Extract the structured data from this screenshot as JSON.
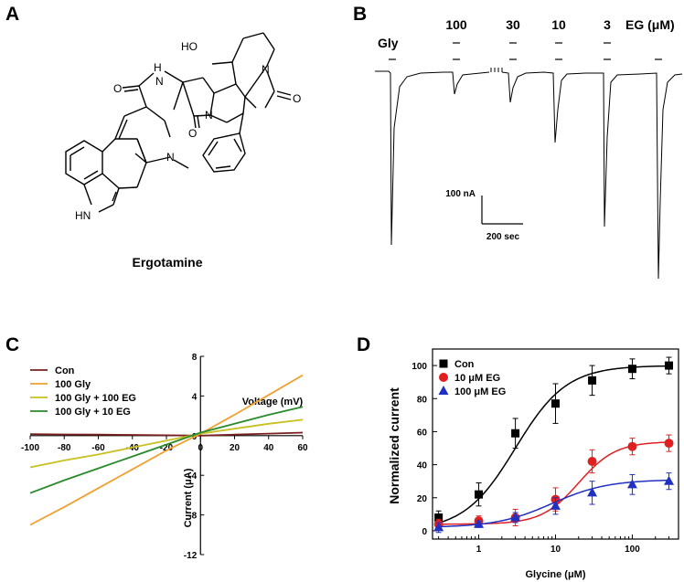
{
  "panels": {
    "a": {
      "letter": "A",
      "compound_name": "Ergotamine",
      "atoms": {
        "ho": "HO",
        "h": "H",
        "n": "N",
        "o": "O",
        "hn": "HN"
      }
    },
    "b": {
      "letter": "B",
      "concentrations": [
        "100",
        "30",
        "10",
        "3"
      ],
      "eg_label": "EG (μM)",
      "gly_label": "Gly",
      "scale_current": "100 nA",
      "scale_time": "200 sec"
    },
    "c": {
      "letter": "C"
    },
    "d": {
      "letter": "D"
    }
  },
  "chart_data": [
    {
      "panel": "C",
      "type": "line",
      "xlabel": "Voltage (mV)",
      "ylabel": "Current (μA)",
      "xlim": [
        -100,
        60
      ],
      "ylim": [
        -12,
        8
      ],
      "xticks": [
        -100,
        -80,
        -60,
        -40,
        -20,
        0,
        20,
        40,
        60
      ],
      "yticks": [
        -12,
        -8,
        -4,
        0,
        4,
        8
      ],
      "legend_position": "top-left",
      "series": [
        {
          "name": "Con",
          "color": "#7a1f1f",
          "x": [
            -100,
            -80,
            -60,
            -40,
            -20,
            0,
            20,
            40,
            60
          ],
          "y": [
            0.15,
            0.12,
            0.1,
            0.07,
            0.04,
            0.0,
            0.1,
            0.2,
            0.3
          ]
        },
        {
          "name": "100 Gly",
          "color": "#f0a030",
          "x": [
            -100,
            -80,
            -60,
            -40,
            -20,
            0,
            20,
            40,
            60
          ],
          "y": [
            -9.0,
            -7.2,
            -5.3,
            -3.4,
            -1.5,
            0.2,
            2.1,
            4.1,
            6.1
          ]
        },
        {
          "name": "100 Gly + 100 EG",
          "color": "#c8c020",
          "x": [
            -100,
            -80,
            -60,
            -40,
            -20,
            0,
            20,
            40,
            60
          ],
          "y": [
            -3.2,
            -2.5,
            -1.9,
            -1.2,
            -0.5,
            0.2,
            0.7,
            1.2,
            1.6
          ]
        },
        {
          "name": "100 Gly + 10 EG",
          "color": "#2a8a2a",
          "x": [
            -100,
            -80,
            -60,
            -40,
            -20,
            0,
            20,
            40,
            60
          ],
          "y": [
            -5.8,
            -4.5,
            -3.3,
            -2.1,
            -0.9,
            0.3,
            1.2,
            2.1,
            2.9
          ]
        }
      ]
    },
    {
      "panel": "D",
      "type": "scatter",
      "xlabel": "Glycine (μM)",
      "ylabel": "Normalized current",
      "xscale": "log",
      "xlim": [
        0.25,
        400
      ],
      "ylim": [
        -5,
        110
      ],
      "xticks": [
        1,
        10,
        100
      ],
      "yticks": [
        0,
        20,
        40,
        60,
        80,
        100
      ],
      "legend_position": "top-left",
      "x": [
        0.3,
        1,
        3,
        10,
        30,
        100,
        300
      ],
      "series": [
        {
          "name": "Con",
          "color": "#000000",
          "marker": "square",
          "values": [
            8,
            22,
            59,
            77,
            91,
            98,
            100
          ],
          "errors": [
            4,
            7,
            9,
            12,
            9,
            6,
            5
          ],
          "fit": {
            "top": 100,
            "ec50": 3.0,
            "hill": 1.3
          }
        },
        {
          "name": "10 μM EG",
          "color": "#e02020",
          "marker": "circle",
          "values": [
            4,
            6,
            8,
            19,
            42,
            51,
            53
          ],
          "errors": [
            3,
            3,
            5,
            7,
            7,
            5,
            5
          ],
          "fit": {
            "top": 54,
            "ec50": 20,
            "hill": 1.8,
            "base": 4
          }
        },
        {
          "name": "100 μM EG",
          "color": "#2030c0",
          "marker": "triangle",
          "values": [
            2,
            4,
            8,
            15,
            23,
            28,
            30
          ],
          "errors": [
            3,
            2,
            3,
            5,
            7,
            6,
            5
          ],
          "fit": {
            "top": 31,
            "ec50": 9,
            "hill": 1.2,
            "base": 2
          }
        }
      ]
    }
  ]
}
